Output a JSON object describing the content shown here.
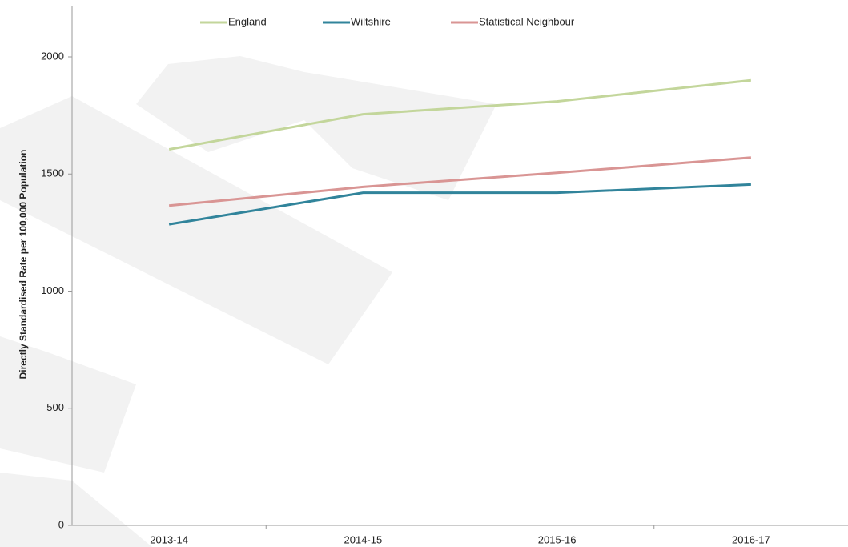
{
  "chart_data": {
    "type": "line",
    "y_label": "Directly Standardised Rate per 100,000 Population",
    "categories": [
      "2013-14",
      "2014-15",
      "2015-16",
      "2016-17"
    ],
    "series": [
      {
        "name": "England",
        "color": "#c3d69b",
        "values": [
          1605,
          1755,
          1810,
          1900
        ]
      },
      {
        "name": "Wiltshire",
        "color": "#31849b",
        "values": [
          1285,
          1420,
          1420,
          1455
        ]
      },
      {
        "name": "Statistical Neighbour",
        "color": "#d99594",
        "values": [
          1365,
          1445,
          1505,
          1570
        ]
      }
    ],
    "ylim": [
      0,
      2200
    ],
    "yticks": [
      0,
      500,
      1000,
      1500,
      2000
    ],
    "grid": false,
    "legend": "top"
  }
}
